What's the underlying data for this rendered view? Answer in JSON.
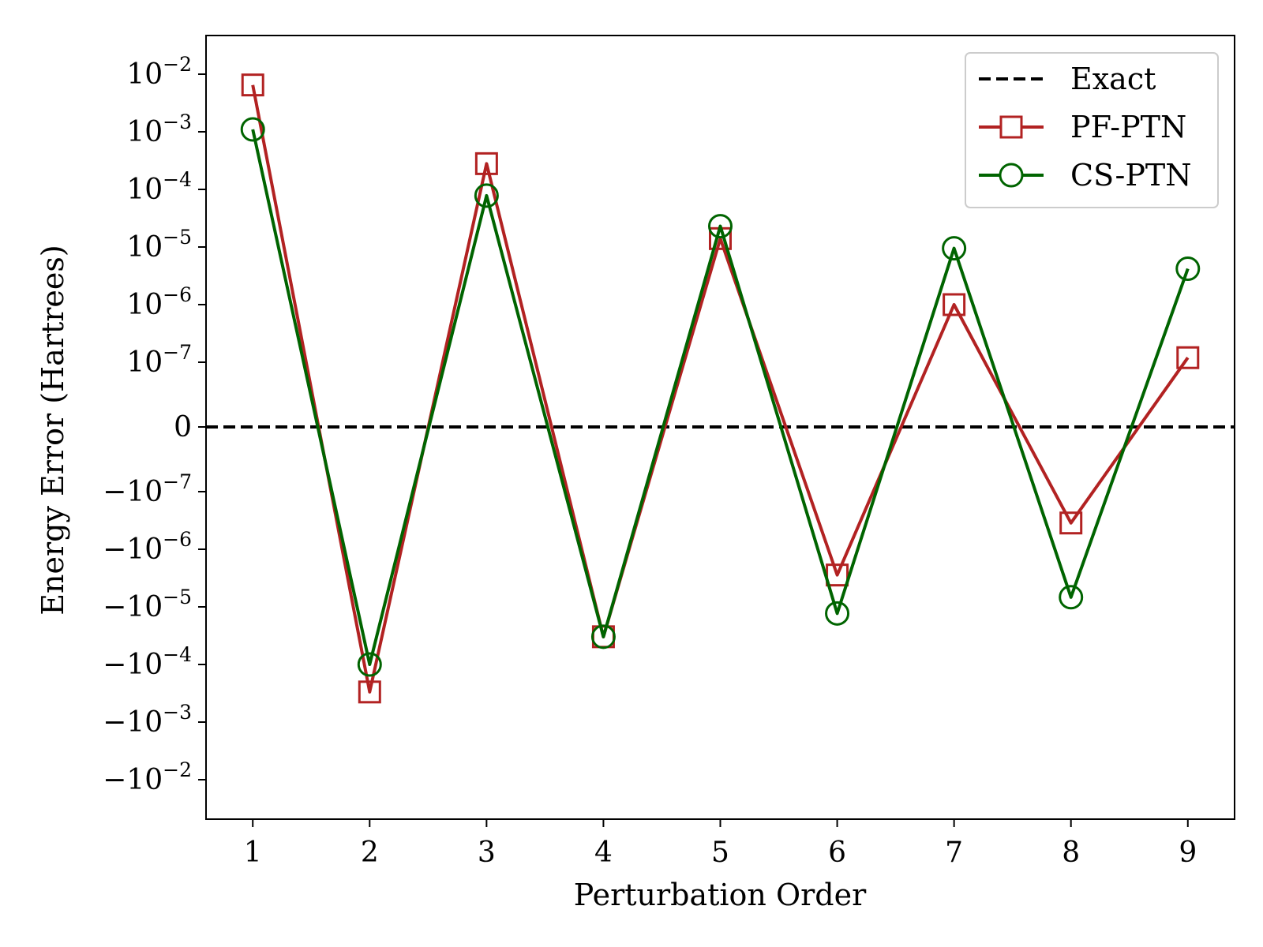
{
  "chart_data": {
    "type": "line",
    "xlabel": "Perturbation Order",
    "ylabel": "Energy Error (Hartrees)",
    "yscale": "symlog",
    "linthresh": 1e-07,
    "x": [
      1,
      2,
      3,
      4,
      5,
      6,
      7,
      8,
      9
    ],
    "xticks": [
      "1",
      "2",
      "3",
      "4",
      "5",
      "6",
      "7",
      "8",
      "9"
    ],
    "xlim": [
      0.6,
      9.4
    ],
    "ylim": [
      -0.05,
      0.05
    ],
    "yticks": [
      {
        "value": 0.01,
        "base": "10",
        "exp": "−2"
      },
      {
        "value": 0.001,
        "base": "10",
        "exp": "−3"
      },
      {
        "value": 0.0001,
        "base": "10",
        "exp": "−4"
      },
      {
        "value": 1e-05,
        "base": "10",
        "exp": "−5"
      },
      {
        "value": 1e-06,
        "base": "10",
        "exp": "−6"
      },
      {
        "value": 1e-07,
        "base": "10",
        "exp": "−7"
      },
      {
        "value": 0,
        "base": "0",
        "exp": ""
      },
      {
        "value": -1e-07,
        "base": "−10",
        "exp": "−7"
      },
      {
        "value": -1e-06,
        "base": "−10",
        "exp": "−6"
      },
      {
        "value": -1e-05,
        "base": "−10",
        "exp": "−5"
      },
      {
        "value": -0.0001,
        "base": "−10",
        "exp": "−4"
      },
      {
        "value": -0.001,
        "base": "−10",
        "exp": "−3"
      },
      {
        "value": -0.01,
        "base": "−10",
        "exp": "−2"
      }
    ],
    "grid": false,
    "legend_position": "top-right",
    "series": [
      {
        "name": "Exact",
        "style": "dashed",
        "marker": "none",
        "color": "#000000",
        "values": [
          0,
          0,
          0,
          0,
          0,
          0,
          0,
          0,
          0
        ]
      },
      {
        "name": "PF-PTN",
        "style": "solid",
        "marker": "square",
        "color": "#b22222",
        "values": [
          0.0065,
          -0.0003,
          0.00028,
          -3.3e-05,
          1.4e-05,
          -2.8e-06,
          1e-06,
          -3.5e-07,
          1.2e-07
        ]
      },
      {
        "name": "CS-PTN",
        "style": "solid",
        "marker": "circle",
        "color": "#006400",
        "values": [
          0.0011,
          -0.0001,
          7.8e-05,
          -3.3e-05,
          2.3e-05,
          -1.3e-05,
          9.5e-06,
          -6.8e-06,
          4.2e-06
        ]
      }
    ]
  }
}
